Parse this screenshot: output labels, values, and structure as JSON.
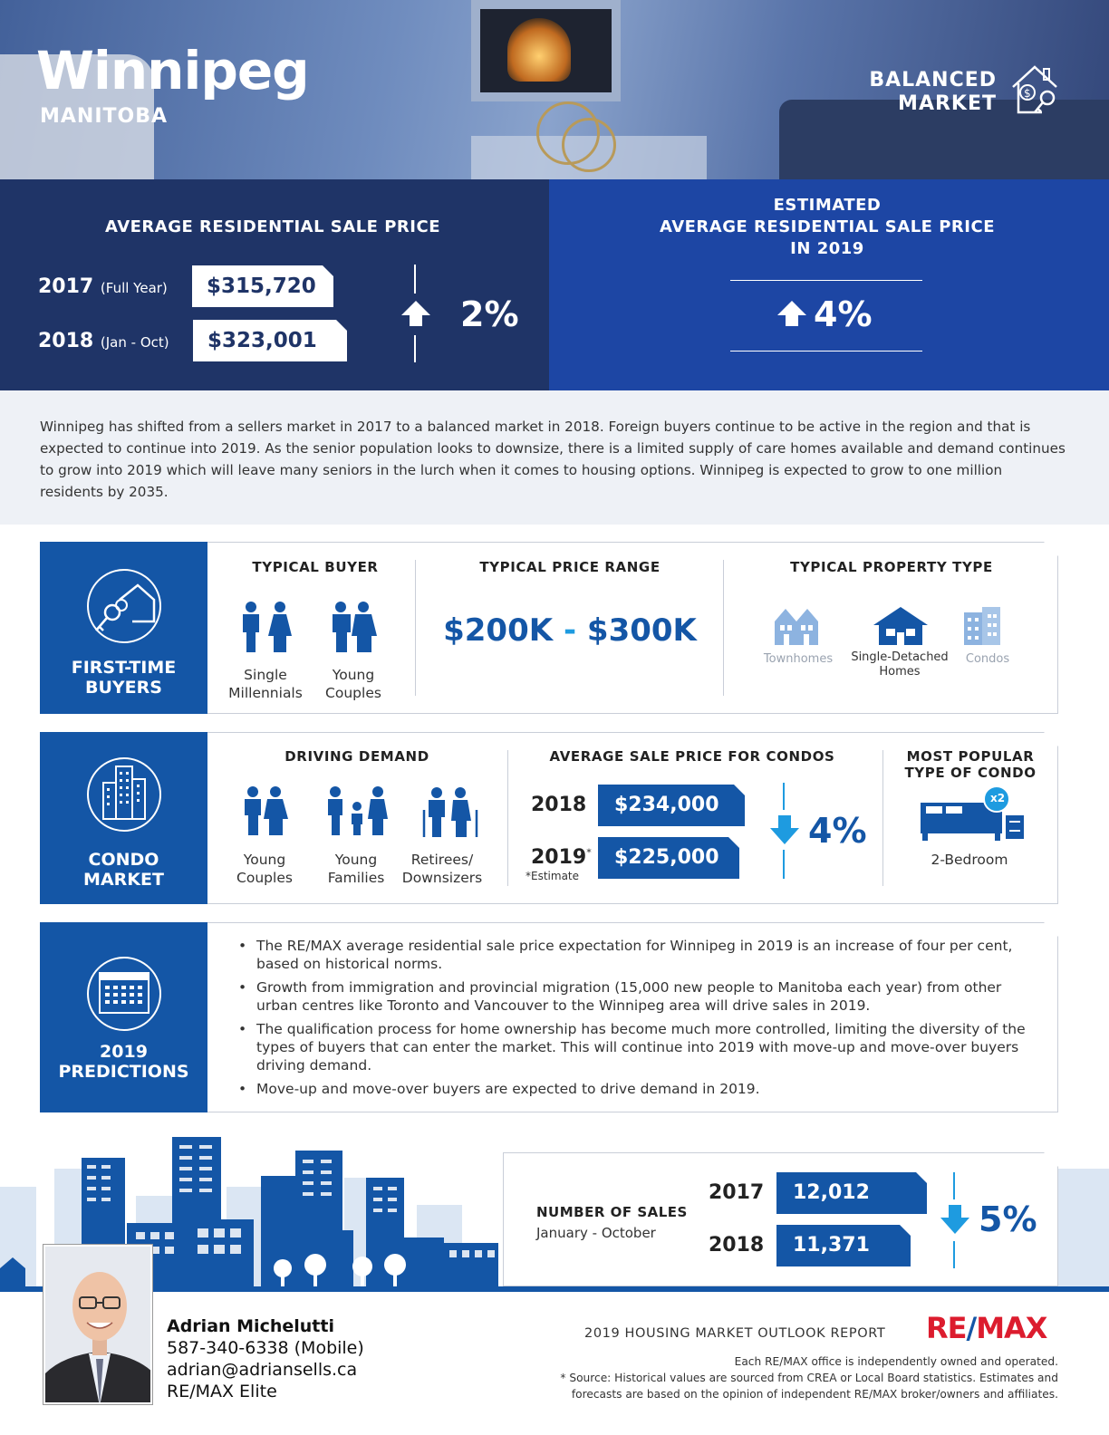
{
  "hero": {
    "city": "Winnipeg",
    "province": "MANITOBA",
    "market_line1": "BALANCED",
    "market_line2": "MARKET"
  },
  "price_band": {
    "left_title": "AVERAGE RESIDENTIAL SALE PRICE",
    "row1_year": "2017",
    "row1_period": "(Full Year)",
    "row1_price": "$315,720",
    "row2_year": "2018",
    "row2_period": "(Jan - Oct)",
    "row2_price": "$323,001",
    "change": "2%",
    "right_title_line1": "ESTIMATED",
    "right_title_line2": "AVERAGE RESIDENTIAL SALE PRICE",
    "right_title_line3": "IN 2019",
    "estimate_change": "4%"
  },
  "intro": "Winnipeg has shifted from a sellers market in 2017 to a balanced market in 2018. Foreign buyers continue to be active in the region and that is expected to continue into 2019. As the senior population looks to downsize, there is a limited supply of care homes available and demand continues to grow into 2019 which will leave many seniors in the lurch when it comes to housing options. Winnipeg is expected to grow to one million residents by 2035.",
  "first_time": {
    "label_line1": "FIRST-TIME",
    "label_line2": "BUYERS",
    "buyer_title": "TYPICAL BUYER",
    "buyer1_line1": "Single",
    "buyer1_line2": "Millennials",
    "buyer2_line1": "Young",
    "buyer2_line2": "Couples",
    "range_title": "TYPICAL PRICE RANGE",
    "range_low": "$200K",
    "range_dash": "-",
    "range_high": "$300K",
    "type_title": "TYPICAL PROPERTY TYPE",
    "type1": "Townhomes",
    "type2_line1": "Single-Detached",
    "type2_line2": "Homes",
    "type3": "Condos"
  },
  "condo": {
    "label_line1": "CONDO",
    "label_line2": "MARKET",
    "demand_title": "DRIVING DEMAND",
    "d1_line1": "Young",
    "d1_line2": "Couples",
    "d2_line1": "Young",
    "d2_line2": "Families",
    "d3_line1": "Retirees/",
    "d3_line2": "Downsizers",
    "avg_title": "AVERAGE SALE PRICE FOR CONDOS",
    "row1_year": "2018",
    "row1_price": "$234,000",
    "row2_year": "2019",
    "row2_mark": "*",
    "row2_note": "*Estimate",
    "row2_price": "$225,000",
    "change": "4%",
    "popular_title_line1": "MOST POPULAR",
    "popular_title_line2": "TYPE OF CONDO",
    "bed_badge": "x2",
    "popular_label": "2-Bedroom"
  },
  "predictions": {
    "label_line1": "2019",
    "label_line2": "PREDICTIONS",
    "bullets": [
      "The RE/MAX average residential sale price expectation for Winnipeg in 2019 is an increase of four per cent, based on historical norms.",
      "Growth from immigration and provincial migration (15,000 new people to Manitoba each year) from other urban centres like Toronto and Vancouver to the Winnipeg area will drive sales in 2019.",
      "The qualification process for home ownership has become much more controlled, limiting the diversity of the types of buyers that can enter the market. This will continue into 2019 with move-up and move-over buyers driving demand.",
      "Move-up and move-over buyers are expected to drive demand in 2019."
    ]
  },
  "sales": {
    "title": "NUMBER OF SALES",
    "period": "January - October",
    "row1_year": "2017",
    "row1_value": "12,012",
    "row2_year": "2018",
    "row2_value": "11,371",
    "change": "5%"
  },
  "agent": {
    "name": "Adrian Michelutti",
    "phone": "587-340-6338 (Mobile)",
    "email": "adrian@adriansells.ca",
    "office": "RE/MAX Elite"
  },
  "footer": {
    "report_title": "2019 HOUSING MARKET OUTLOOK REPORT",
    "brand_left": "RE",
    "brand_slash": "/",
    "brand_right": "MAX",
    "disclaimer1": "Each RE/MAX office is independently owned and operated.",
    "disclaimer2": "* Source: Historical values are sourced from CREA or Local Board statistics. Estimates and",
    "disclaimer3": "forecasts are based on the opinion of independent RE/MAX broker/owners and affiliates."
  },
  "colors": {
    "navy": "#1f3467",
    "royal": "#1d46a4",
    "brand_blue": "#1456a6",
    "light_blue": "#8db3e0",
    "remax_red": "#dc1c2e",
    "arrow_cyan": "#1e9be0"
  },
  "icons": [
    "house-key-icon",
    "keys-house-icon",
    "condo-building-icon",
    "calendar-icon",
    "up-arrow-icon",
    "down-arrow-icon",
    "people-icon",
    "townhome-icon",
    "house-icon",
    "condo-icon",
    "bed-icon"
  ]
}
